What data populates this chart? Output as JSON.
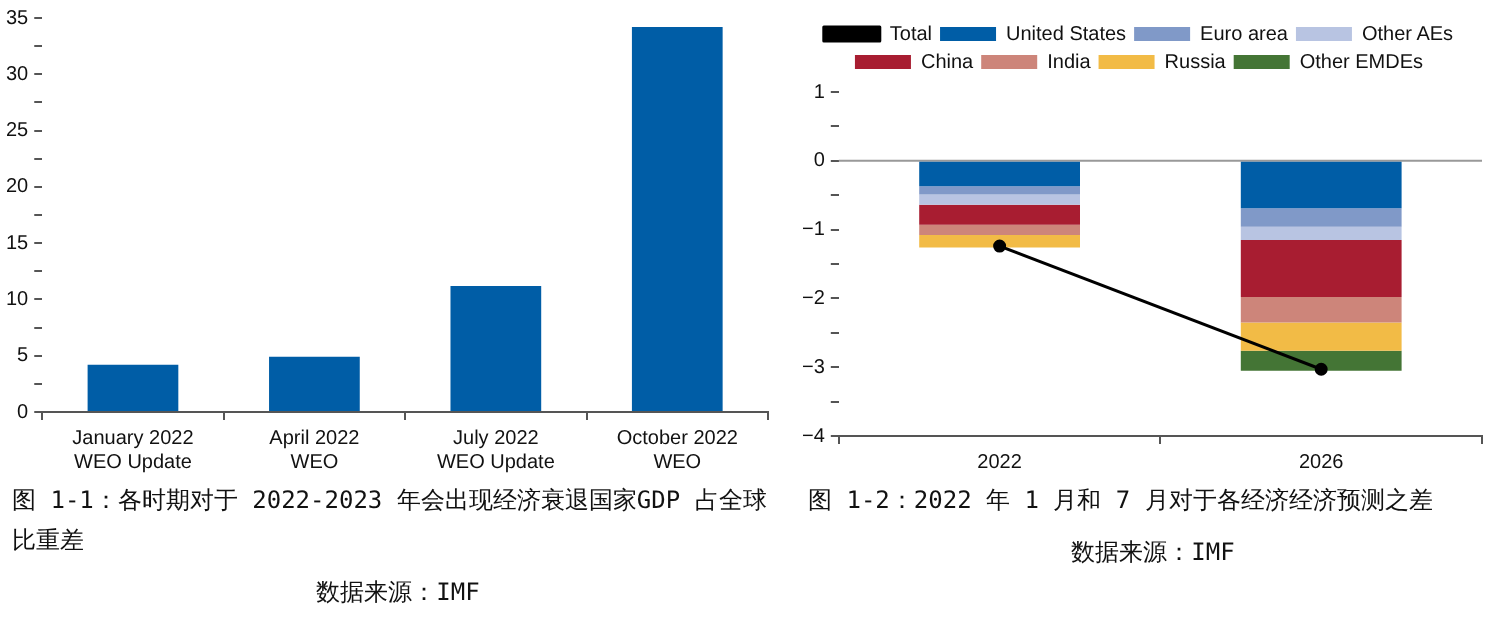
{
  "chart_data": [
    {
      "type": "bar",
      "title": "图 1-1：各时期对于 2022-2023 年会出现经济衰退国家GDP 占全球比重差",
      "annotations": [
        "数据来源：IMF"
      ],
      "categories": [
        "January 2022\nWEO Update",
        "April 2022\nWEO",
        "July 2022\nWEO Update",
        "October 2022\nWEO"
      ],
      "values": [
        4.2,
        4.9,
        11.2,
        34.2
      ],
      "color": "#005da6",
      "ylim": [
        0,
        35
      ],
      "yticks": [
        0,
        {
          "value": 2.5,
          "label": null
        },
        5,
        {
          "value": 7.5,
          "label": null
        },
        10,
        {
          "value": 12.5,
          "label": null
        },
        15,
        {
          "value": 17.5,
          "label": null
        },
        20,
        {
          "value": 22.5,
          "label": null
        },
        25,
        {
          "value": 27.5,
          "label": null
        },
        30,
        {
          "value": 32.5,
          "label": null
        },
        35
      ],
      "grid": false,
      "legend": false
    },
    {
      "type": "bar",
      "stacked": true,
      "title": "图 1-2：2022 年 1 月和 7 月对于各经济经济预测之差",
      "annotations": [
        "数据来源：IMF"
      ],
      "categories": [
        "2022",
        "2026"
      ],
      "series": [
        {
          "name": "United States",
          "color": "#005da6",
          "values": [
            -0.37,
            -0.69
          ]
        },
        {
          "name": "Euro area",
          "color": "#8099c8",
          "values": [
            -0.12,
            -0.27
          ]
        },
        {
          "name": "Other AEs",
          "color": "#b8c4e2",
          "values": [
            -0.15,
            -0.19
          ]
        },
        {
          "name": "China",
          "color": "#a81d31",
          "values": [
            -0.29,
            -0.83
          ]
        },
        {
          "name": "India",
          "color": "#cd857a",
          "values": [
            -0.15,
            -0.37
          ]
        },
        {
          "name": "Russia",
          "color": "#f2bb46",
          "values": [
            -0.18,
            -0.41
          ]
        },
        {
          "name": "Other EMDEs",
          "color": "#447535",
          "values": [
            0,
            -0.29
          ]
        },
        {
          "name": "Total",
          "type": "line",
          "color": "#000000",
          "values": [
            -1.24,
            -3.03
          ],
          "marker": "circle"
        }
      ],
      "ylim": [
        -4,
        1
      ],
      "yticks": [
        -4,
        {
          "value": -3.5,
          "label": null
        },
        -3,
        {
          "value": -2.5,
          "label": null
        },
        -2,
        {
          "value": -1.5,
          "label": null
        },
        -1,
        {
          "value": -0.5,
          "label": null
        },
        0,
        {
          "value": 0.5,
          "label": null
        },
        1
      ],
      "ref_lines": [
        {
          "axis": "y",
          "value": 0,
          "color": "#999999"
        }
      ],
      "grid": false,
      "legend": "top"
    }
  ]
}
